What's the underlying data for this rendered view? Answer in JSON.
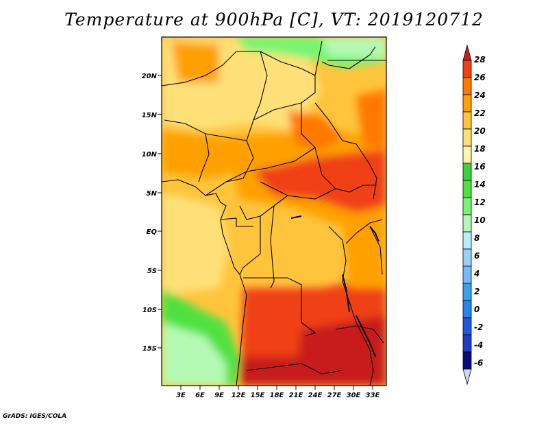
{
  "title": "Temperature at 900hPa [C], VT: 2019120712",
  "credit": "GrADS: IGES/COLA",
  "map": {
    "lat_labels": [
      "20N",
      "15N",
      "10N",
      "5N",
      "EQ",
      "5S",
      "10S",
      "15S"
    ],
    "lon_labels": [
      "3E",
      "6E",
      "9E",
      "12E",
      "15E",
      "18E",
      "21E",
      "24E",
      "27E",
      "30E",
      "33E"
    ]
  },
  "colorbar": {
    "labels": [
      "28",
      "26",
      "24",
      "22",
      "20",
      "18",
      "16",
      "14",
      "12",
      "10",
      "8",
      "6",
      "4",
      "2",
      "0",
      "-2",
      "-4",
      "-6"
    ],
    "colors": [
      "#d3d3f0",
      "#0a0a78",
      "#1e3cc8",
      "#1e5ae1",
      "#2882f0",
      "#3ca0f0",
      "#78b9fa",
      "#96d2fa",
      "#b4f0fa",
      "#b4fab4",
      "#78f573",
      "#50e141",
      "#37d23c",
      "#fff5aa",
      "#ffe078",
      "#ffc43c",
      "#ffa000",
      "#ff7800",
      "#f04014",
      "#c81e1e"
    ]
  }
}
